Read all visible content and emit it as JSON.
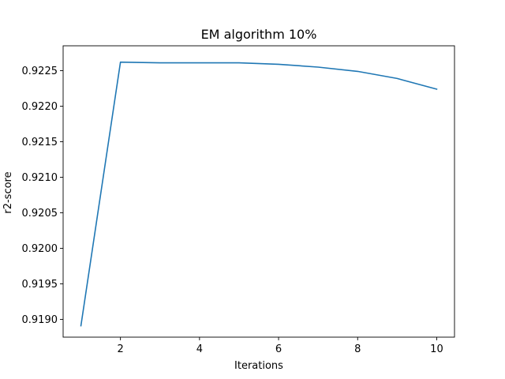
{
  "chart_data": {
    "type": "line",
    "title": "EM algorithm 10%",
    "xlabel": "Iterations",
    "ylabel": "r2-score",
    "xlim": [
      0.55,
      10.45
    ],
    "ylim": [
      0.91875,
      0.92285
    ],
    "xticks": [
      2,
      4,
      6,
      8,
      10
    ],
    "yticks": [
      0.919,
      0.9195,
      0.92,
      0.9205,
      0.921,
      0.9215,
      0.922,
      0.9225
    ],
    "ytick_labels": [
      "0.9190",
      "0.9195",
      "0.9200",
      "0.9205",
      "0.9210",
      "0.9215",
      "0.9220",
      "0.9225"
    ],
    "grid": false,
    "series": [
      {
        "color": "#1f77b4",
        "x": [
          1,
          2,
          3,
          4,
          5,
          6,
          7,
          8,
          9,
          10
        ],
        "y": [
          0.91891,
          0.92262,
          0.92261,
          0.92261,
          0.92261,
          0.92259,
          0.92255,
          0.92249,
          0.92239,
          0.92224
        ]
      }
    ]
  }
}
